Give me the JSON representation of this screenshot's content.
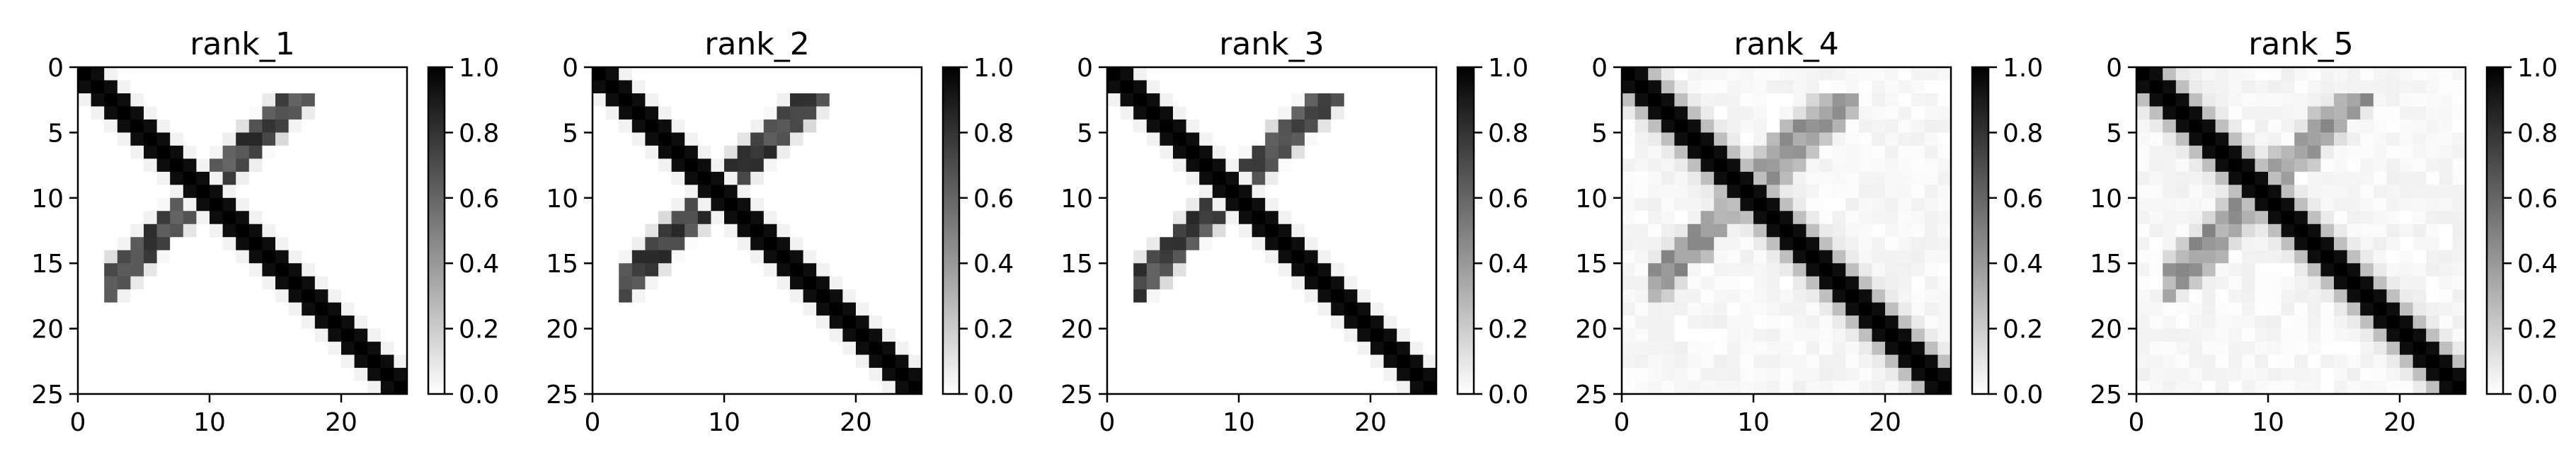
{
  "chart_data": [
    {
      "type": "heatmap",
      "title": "rank_1",
      "pattern": "sharp",
      "seed": 1,
      "size": 25,
      "xticks": [
        0,
        10,
        20
      ],
      "yticks": [
        0,
        5,
        10,
        15,
        20,
        25
      ],
      "xlim": [
        0,
        25
      ],
      "ylim": [
        25,
        0
      ],
      "colorbar": {
        "range": [
          0.0,
          1.0
        ],
        "ticks": [
          "0.0",
          "0.2",
          "0.4",
          "0.6",
          "0.8",
          "1.0"
        ],
        "cmap": "white-to-black"
      }
    },
    {
      "type": "heatmap",
      "title": "rank_2",
      "pattern": "sharp",
      "seed": 2,
      "size": 25,
      "xticks": [
        0,
        10,
        20
      ],
      "yticks": [
        0,
        5,
        10,
        15,
        20,
        25
      ],
      "xlim": [
        0,
        25
      ],
      "ylim": [
        25,
        0
      ],
      "colorbar": {
        "range": [
          0.0,
          1.0
        ],
        "ticks": [
          "0.0",
          "0.2",
          "0.4",
          "0.6",
          "0.8",
          "1.0"
        ],
        "cmap": "white-to-black"
      }
    },
    {
      "type": "heatmap",
      "title": "rank_3",
      "pattern": "sharp",
      "seed": 3,
      "size": 25,
      "xticks": [
        0,
        10,
        20
      ],
      "yticks": [
        0,
        5,
        10,
        15,
        20,
        25
      ],
      "xlim": [
        0,
        25
      ],
      "ylim": [
        25,
        0
      ],
      "colorbar": {
        "range": [
          0.0,
          1.0
        ],
        "ticks": [
          "0.0",
          "0.2",
          "0.4",
          "0.6",
          "0.8",
          "1.0"
        ],
        "cmap": "white-to-black"
      }
    },
    {
      "type": "heatmap",
      "title": "rank_4",
      "pattern": "diffuse",
      "seed": 4,
      "size": 25,
      "xticks": [
        0,
        10,
        20
      ],
      "yticks": [
        0,
        5,
        10,
        15,
        20,
        25
      ],
      "xlim": [
        0,
        25
      ],
      "ylim": [
        25,
        0
      ],
      "colorbar": {
        "range": [
          0.0,
          1.0
        ],
        "ticks": [
          "0.0",
          "0.2",
          "0.4",
          "0.6",
          "0.8",
          "1.0"
        ],
        "cmap": "white-to-black"
      }
    },
    {
      "type": "heatmap",
      "title": "rank_5",
      "pattern": "diffuse",
      "seed": 5,
      "size": 25,
      "xticks": [
        0,
        10,
        20
      ],
      "yticks": [
        0,
        5,
        10,
        15,
        20,
        25
      ],
      "xlim": [
        0,
        25
      ],
      "ylim": [
        25,
        0
      ],
      "colorbar": {
        "range": [
          0.0,
          1.0
        ],
        "ticks": [
          "0.0",
          "0.2",
          "0.4",
          "0.6",
          "0.8",
          "1.0"
        ],
        "cmap": "white-to-black"
      }
    }
  ]
}
